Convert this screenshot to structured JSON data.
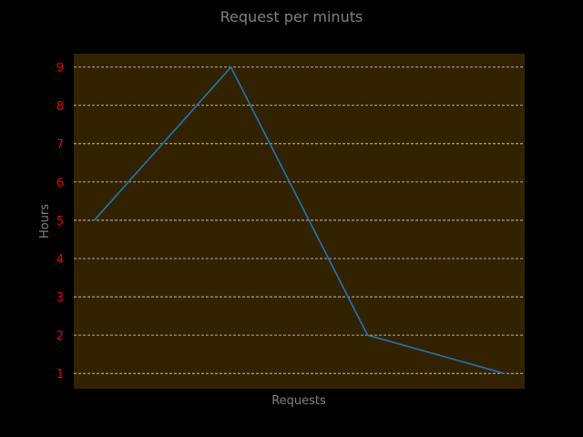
{
  "chart_data": {
    "type": "line",
    "title": "Request per minuts",
    "xlabel": "Requests",
    "ylabel": "Hours",
    "x": [
      0,
      1,
      2,
      3
    ],
    "xlim": [
      -0.15,
      3.15
    ],
    "ylim": [
      0.6,
      9.35
    ],
    "yticks": [
      1,
      2,
      3,
      4,
      5,
      6,
      7,
      8,
      9
    ],
    "series": [
      {
        "values": [
          5,
          9,
          2,
          1
        ]
      }
    ],
    "grid": "horizontal dashed",
    "colors": {
      "background": "#000000",
      "plot_background": "#332200",
      "line": "#1f77b4",
      "tick_labels": "#e8000b",
      "text": "#808080",
      "grid": "#d8d8d8"
    }
  }
}
